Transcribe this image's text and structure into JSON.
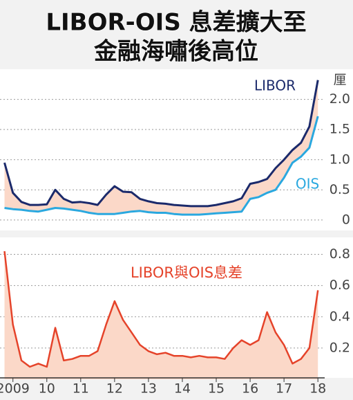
{
  "chart_data": [
    {
      "type": "line",
      "title": "LIBOR-OIS 息差擴大至",
      "subtitle": "金融海嘯後高位",
      "y_label": "厘",
      "x": [
        2008.75,
        2009.0,
        2009.25,
        2009.5,
        2009.75,
        2010.0,
        2010.25,
        2010.5,
        2010.75,
        2011.0,
        2011.25,
        2011.5,
        2011.75,
        2012.0,
        2012.25,
        2012.5,
        2012.75,
        2013.0,
        2013.25,
        2013.5,
        2013.75,
        2014.0,
        2014.25,
        2014.5,
        2014.75,
        2015.0,
        2015.25,
        2015.5,
        2015.75,
        2016.0,
        2016.25,
        2016.5,
        2016.75,
        2017.0,
        2017.25,
        2017.5,
        2017.75,
        2018.0
      ],
      "series": [
        {
          "name": "LIBOR",
          "color": "#1b2a6b",
          "values": [
            0.95,
            0.45,
            0.3,
            0.25,
            0.25,
            0.26,
            0.5,
            0.35,
            0.29,
            0.3,
            0.28,
            0.25,
            0.42,
            0.56,
            0.47,
            0.46,
            0.35,
            0.31,
            0.28,
            0.27,
            0.25,
            0.24,
            0.23,
            0.23,
            0.23,
            0.25,
            0.28,
            0.31,
            0.36,
            0.6,
            0.63,
            0.68,
            0.86,
            1.0,
            1.16,
            1.28,
            1.55,
            2.32
          ]
        },
        {
          "name": "OIS",
          "color": "#2aa8df",
          "values": [
            0.2,
            0.18,
            0.17,
            0.15,
            0.14,
            0.17,
            0.2,
            0.19,
            0.17,
            0.15,
            0.12,
            0.1,
            0.1,
            0.1,
            0.12,
            0.14,
            0.15,
            0.13,
            0.12,
            0.12,
            0.1,
            0.09,
            0.09,
            0.09,
            0.1,
            0.11,
            0.12,
            0.13,
            0.14,
            0.35,
            0.38,
            0.45,
            0.5,
            0.7,
            0.95,
            1.05,
            1.2,
            1.72
          ]
        }
      ],
      "fill_color": "#fbd8c8",
      "xlim": [
        2008.7,
        2018.2
      ],
      "ylim": [
        -0.15,
        2.5
      ],
      "yticks": [
        0,
        0.5,
        {
          "value": 1,
          "label": "1.0"
        },
        1.5,
        {
          "value": 2,
          "label": "2.0"
        }
      ],
      "grid": true
    },
    {
      "type": "area",
      "x": [
        2008.75,
        2009.0,
        2009.25,
        2009.5,
        2009.75,
        2010.0,
        2010.25,
        2010.5,
        2010.75,
        2011.0,
        2011.25,
        2011.5,
        2011.75,
        2012.0,
        2012.25,
        2012.5,
        2012.75,
        2013.0,
        2013.25,
        2013.5,
        2013.75,
        2014.0,
        2014.25,
        2014.5,
        2014.75,
        2015.0,
        2015.25,
        2015.5,
        2015.75,
        2016.0,
        2016.25,
        2016.5,
        2016.75,
        2017.0,
        2017.25,
        2017.5,
        2017.75,
        2018.0
      ],
      "series": [
        {
          "name": "LIBOR與OIS息差",
          "color": "#e5432a",
          "values": [
            0.82,
            0.35,
            0.12,
            0.08,
            0.1,
            0.08,
            0.33,
            0.12,
            0.13,
            0.15,
            0.15,
            0.18,
            0.35,
            0.5,
            0.38,
            0.3,
            0.22,
            0.18,
            0.16,
            0.17,
            0.15,
            0.15,
            0.14,
            0.15,
            0.14,
            0.14,
            0.13,
            0.2,
            0.25,
            0.22,
            0.25,
            0.43,
            0.3,
            0.22,
            0.1,
            0.13,
            0.2,
            0.57
          ]
        }
      ],
      "fill_color": "#fbd8c8",
      "xlim": [
        2008.7,
        2018.2
      ],
      "xticks": [
        2009,
        {
          "value": 2010,
          "label": "10"
        },
        {
          "value": 2011,
          "label": "11"
        },
        {
          "value": 2012,
          "label": "12"
        },
        {
          "value": 2013,
          "label": "13"
        },
        {
          "value": 2014,
          "label": "14"
        },
        {
          "value": 2015,
          "label": "15"
        },
        {
          "value": 2016,
          "label": "16"
        },
        {
          "value": 2017,
          "label": "17"
        },
        {
          "value": 2018,
          "label": "18"
        }
      ],
      "ylim": [
        0,
        0.9
      ],
      "yticks": [
        0.2,
        0.4,
        0.6,
        0.8
      ],
      "grid": true
    }
  ]
}
